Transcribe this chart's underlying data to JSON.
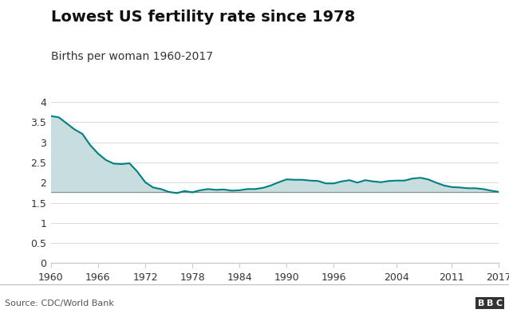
{
  "title": "Lowest US fertility rate since 1978",
  "subtitle": "Births per woman 1960-2017",
  "source": "Source: CDC/World Bank",
  "line_color": "#008080",
  "fill_color": "#c8dede",
  "baseline": 1.765,
  "ylim": [
    0,
    4.3
  ],
  "yticks": [
    0,
    0.5,
    1,
    1.5,
    2,
    2.5,
    3,
    3.5,
    4
  ],
  "xticks": [
    1960,
    1966,
    1972,
    1978,
    1984,
    1990,
    1996,
    2004,
    2011,
    2017
  ],
  "years": [
    1960,
    1961,
    1962,
    1963,
    1964,
    1965,
    1966,
    1967,
    1968,
    1969,
    1970,
    1971,
    1972,
    1973,
    1974,
    1975,
    1976,
    1977,
    1978,
    1979,
    1980,
    1981,
    1982,
    1983,
    1984,
    1985,
    1986,
    1987,
    1988,
    1989,
    1990,
    1991,
    1992,
    1993,
    1994,
    1995,
    1996,
    1997,
    1998,
    1999,
    2000,
    2001,
    2002,
    2003,
    2004,
    2005,
    2006,
    2007,
    2008,
    2009,
    2010,
    2011,
    2012,
    2013,
    2014,
    2015,
    2016,
    2017
  ],
  "values": [
    3.65,
    3.62,
    3.47,
    3.32,
    3.21,
    2.93,
    2.72,
    2.56,
    2.47,
    2.46,
    2.48,
    2.27,
    2.01,
    1.88,
    1.84,
    1.77,
    1.74,
    1.79,
    1.76,
    1.81,
    1.84,
    1.82,
    1.83,
    1.8,
    1.81,
    1.84,
    1.84,
    1.87,
    1.93,
    2.01,
    2.08,
    2.07,
    2.07,
    2.05,
    2.04,
    1.98,
    1.98,
    2.03,
    2.06,
    2.0,
    2.06,
    2.03,
    2.01,
    2.04,
    2.05,
    2.05,
    2.1,
    2.12,
    2.08,
    2.0,
    1.93,
    1.89,
    1.88,
    1.86,
    1.86,
    1.84,
    1.8,
    1.77
  ],
  "footer_line_color": "#bbbbbb",
  "bbc_bg": "#333333",
  "bbc_text": "#ffffff",
  "spine_bottom_color": "#cccccc",
  "grid_color": "#dddddd",
  "tick_label_color": "#333333",
  "title_fontsize": 14,
  "subtitle_fontsize": 10,
  "tick_fontsize": 9,
  "source_fontsize": 8
}
